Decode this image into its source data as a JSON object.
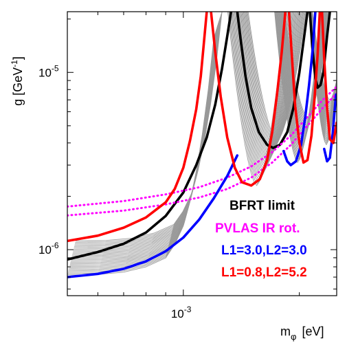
{
  "chart_data": {
    "type": "line",
    "xscale": "log",
    "yscale": "log",
    "xlim": [
      0.0005,
      0.0025
    ],
    "ylim": [
      5.5e-07,
      2.2e-05
    ],
    "xlabel_main": "m",
    "xlabel_sub": "φ",
    "xlabel_unit": "[eV]",
    "ylabel_main": "g  [GeV",
    "ylabel_sup": "-1",
    "ylabel_close": "]",
    "xticks": [
      {
        "value": 0.001,
        "base": "10",
        "exp": "-3"
      }
    ],
    "yticks": [
      {
        "value": 1e-06,
        "base": "10",
        "exp": "-6"
      },
      {
        "value": 1e-05,
        "base": "10",
        "exp": "-5"
      }
    ],
    "grid": false,
    "legend_position": "bottom-right",
    "legend": [
      {
        "label": "BFRT limit",
        "color": "#000000"
      },
      {
        "label": "PVLAS IR rot.",
        "color": "#ff00ff"
      },
      {
        "label": "L1=3.0,L2=3.0",
        "color": "#0000ff"
      },
      {
        "label": "L1=0.8,L2=5.2",
        "color": "#ff0000"
      }
    ],
    "series": [
      {
        "color": "#000000",
        "style": "solid",
        "points": [
          [
            0.0005,
            8.8e-07
          ],
          [
            0.0006,
            9.7e-07
          ],
          [
            0.0007,
            1.08e-06
          ],
          [
            0.0008,
            1.25e-06
          ],
          [
            0.0009,
            1.55e-06
          ],
          [
            0.001,
            2.1e-06
          ],
          [
            0.00108,
            3e-06
          ],
          [
            0.00115,
            4.3e-06
          ],
          [
            0.00121,
            6.6e-06
          ],
          [
            0.00126,
            1.05e-05
          ],
          [
            0.0013,
            1.6e-05
          ],
          [
            0.00133,
            2.2e-05
          ]
        ]
      },
      {
        "color": "#000000",
        "style": "solid",
        "points": [
          [
            0.00138,
            2.2e-05
          ],
          [
            0.00141,
            1.5e-05
          ],
          [
            0.00145,
            9.5e-06
          ],
          [
            0.0015,
            6.3e-06
          ],
          [
            0.00157,
            4.6e-06
          ],
          [
            0.00165,
            3.9e-06
          ],
          [
            0.00171,
            3.75e-06
          ],
          [
            0.00178,
            3.9e-06
          ],
          [
            0.00186,
            4.6e-06
          ],
          [
            0.00193,
            6.3e-06
          ],
          [
            0.002,
            1e-05
          ],
          [
            0.0021,
            2.2e-05
          ]
        ]
      },
      {
        "color": "#000000",
        "style": "solid",
        "points": [
          [
            0.00213,
            2.2e-05
          ],
          [
            0.00216,
            1.4e-05
          ],
          [
            0.0022,
            9.3e-06
          ],
          [
            0.00223,
            8.2e-06
          ],
          [
            0.00227,
            8.5e-06
          ],
          [
            0.00231,
            1e-05
          ],
          [
            0.00236,
            1.6e-05
          ],
          [
            0.0024,
            2.2e-05
          ]
        ]
      },
      {
        "color": "#ff00ff",
        "style": "dotted",
        "points": [
          [
            0.0005,
            1.75e-06
          ],
          [
            0.0007,
            1.88e-06
          ],
          [
            0.0009,
            2.05e-06
          ],
          [
            0.0011,
            2.25e-06
          ],
          [
            0.0013,
            2.55e-06
          ],
          [
            0.0015,
            2.95e-06
          ],
          [
            0.0017,
            3.55e-06
          ],
          [
            0.0019,
            4.4e-06
          ],
          [
            0.0021,
            5.6e-06
          ],
          [
            0.0023,
            7e-06
          ],
          [
            0.0025,
            8.3e-06
          ]
        ]
      },
      {
        "color": "#ff00ff",
        "style": "dotted",
        "points": [
          [
            0.0005,
            1.56e-06
          ],
          [
            0.0007,
            1.66e-06
          ],
          [
            0.0009,
            1.8e-06
          ],
          [
            0.0011,
            1.97e-06
          ],
          [
            0.0013,
            2.2e-06
          ],
          [
            0.0015,
            2.55e-06
          ],
          [
            0.0017,
            3.1e-06
          ],
          [
            0.0019,
            3.9e-06
          ],
          [
            0.0021,
            5e-06
          ],
          [
            0.0023,
            6.3e-06
          ],
          [
            0.0025,
            7.6e-06
          ]
        ]
      },
      {
        "color": "#0000ff",
        "style": "solid",
        "points": [
          [
            0.0005,
            7e-07
          ],
          [
            0.0006,
            7.3e-07
          ],
          [
            0.0007,
            7.8e-07
          ],
          [
            0.0008,
            8.6e-07
          ],
          [
            0.0009,
            9.8e-07
          ],
          [
            0.001,
            1.17e-06
          ],
          [
            0.0011,
            1.48e-06
          ],
          [
            0.0012,
            1.95e-06
          ],
          [
            0.0013,
            2.6e-06
          ],
          [
            0.00138,
            3.4e-06
          ]
        ]
      },
      {
        "color": "#0000ff",
        "style": "solid",
        "points": [
          [
            0.00182,
            3.6e-06
          ],
          [
            0.00186,
            3.15e-06
          ],
          [
            0.0019,
            3e-06
          ],
          [
            0.00196,
            3.15e-06
          ],
          [
            0.00202,
            3.9e-06
          ],
          [
            0.00207,
            5.5e-06
          ],
          [
            0.00212,
            8.5e-06
          ],
          [
            0.00217,
            1.4e-05
          ],
          [
            0.0022,
            2.2e-05
          ]
        ]
      },
      {
        "color": "#0000ff",
        "style": "solid",
        "points": [
          [
            0.00232,
            3.7e-06
          ],
          [
            0.00236,
            3.15e-06
          ],
          [
            0.0024,
            3.3e-06
          ],
          [
            0.00244,
            4.5e-06
          ],
          [
            0.00249,
            7.5e-06
          ]
        ]
      },
      {
        "color": "#ff0000",
        "style": "solid",
        "points": [
          [
            0.0005,
            1.12e-06
          ],
          [
            0.0006,
            1.2e-06
          ],
          [
            0.0007,
            1.33e-06
          ],
          [
            0.0008,
            1.52e-06
          ],
          [
            0.0009,
            1.85e-06
          ],
          [
            0.00095,
            2.2e-06
          ],
          [
            0.001,
            2.9e-06
          ],
          [
            0.00104,
            4.1e-06
          ],
          [
            0.00108,
            6.2e-06
          ],
          [
            0.00111,
            9.5e-06
          ],
          [
            0.00113,
            1.45e-05
          ],
          [
            0.00115,
            2.2e-05
          ]
        ]
      },
      {
        "color": "#ff0000",
        "style": "solid",
        "points": [
          [
            0.00118,
            2.2e-05
          ],
          [
            0.00121,
            1.3e-05
          ],
          [
            0.00125,
            7.3e-06
          ],
          [
            0.0013,
            4.3e-06
          ],
          [
            0.00136,
            2.9e-06
          ],
          [
            0.00142,
            2.4e-06
          ],
          [
            0.0015,
            2.3e-06
          ],
          [
            0.00158,
            2.5e-06
          ],
          [
            0.00165,
            3.2e-06
          ],
          [
            0.0017,
            4.6e-06
          ],
          [
            0.00175,
            7.5e-06
          ],
          [
            0.0018,
            1.3e-05
          ],
          [
            0.00184,
            2.2e-05
          ]
        ]
      },
      {
        "color": "#ff0000",
        "style": "solid",
        "points": [
          [
            0.00188,
            2.2e-05
          ],
          [
            0.00191,
            1.3e-05
          ],
          [
            0.00195,
            6.5e-06
          ],
          [
            0.002,
            4e-06
          ],
          [
            0.00205,
            3.1e-06
          ],
          [
            0.0021,
            3.2e-06
          ],
          [
            0.00215,
            4.4e-06
          ],
          [
            0.00219,
            7.2e-06
          ],
          [
            0.00223,
            1.25e-05
          ],
          [
            0.00226,
            2.2e-05
          ]
        ]
      },
      {
        "color": "#ff0000",
        "style": "solid",
        "points": [
          [
            0.00229,
            2.2e-05
          ],
          [
            0.00232,
            1.2e-05
          ],
          [
            0.00236,
            6.3e-06
          ],
          [
            0.0024,
            4.2e-06
          ],
          [
            0.00245,
            4e-06
          ],
          [
            0.0025,
            5.2e-06
          ]
        ]
      }
    ],
    "grey_family": {
      "color": "#999999",
      "description_count": 26,
      "base_start": 7.2e-07,
      "base_end": 1.12e-06,
      "min_start": 2.3e-06,
      "min_end": 4.1e-06
    }
  }
}
